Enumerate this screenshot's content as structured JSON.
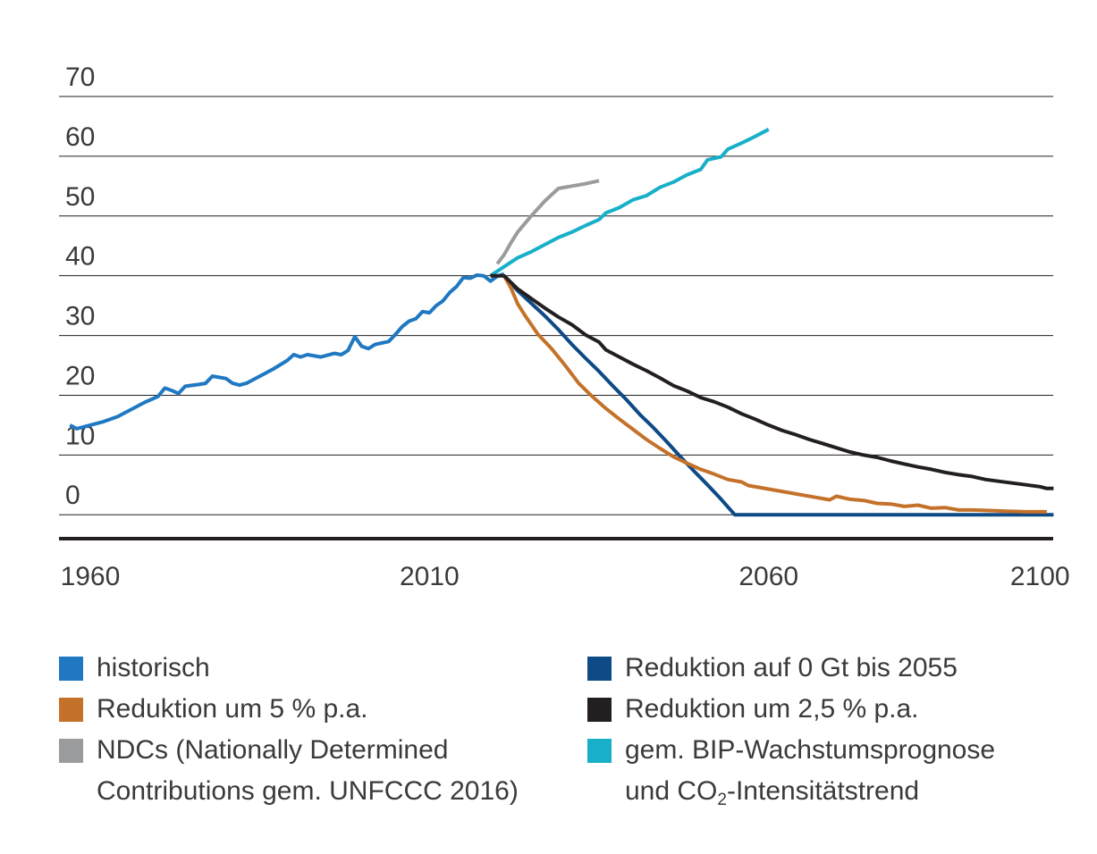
{
  "chart_data": {
    "type": "line",
    "title": "",
    "xlabel": "",
    "ylabel": "",
    "xlim": [
      1955,
      2103
    ],
    "ylim": [
      -4,
      70
    ],
    "x_ticks": [
      1960,
      2010,
      2060,
      2100
    ],
    "x_tick_labels": [
      "1960",
      "2010",
      "2060",
      "2100"
    ],
    "y_ticks": [
      70,
      60,
      50,
      40,
      30,
      20,
      10,
      0
    ],
    "y_tick_labels": [
      "70",
      "60",
      "50",
      "40",
      "30",
      "20",
      "10",
      "0"
    ],
    "grid": "horizontal",
    "legend_position": "bottom",
    "series": [
      {
        "name": "historisch",
        "color": "#1f78c1",
        "points": [
          [
            1957,
            15.0
          ],
          [
            1958,
            14.4
          ],
          [
            1960,
            15.0
          ],
          [
            1962,
            15.6
          ],
          [
            1964,
            16.4
          ],
          [
            1965,
            17.0
          ],
          [
            1967,
            18.2
          ],
          [
            1968,
            18.8
          ],
          [
            1970,
            19.8
          ],
          [
            1971,
            21.2
          ],
          [
            1972,
            20.8
          ],
          [
            1973,
            20.3
          ],
          [
            1974,
            21.5
          ],
          [
            1976,
            21.8
          ],
          [
            1977,
            22.0
          ],
          [
            1978,
            23.2
          ],
          [
            1980,
            22.8
          ],
          [
            1981,
            22.0
          ],
          [
            1982,
            21.7
          ],
          [
            1983,
            22.0
          ],
          [
            1985,
            23.2
          ],
          [
            1987,
            24.4
          ],
          [
            1989,
            25.8
          ],
          [
            1990,
            26.8
          ],
          [
            1991,
            26.4
          ],
          [
            1992,
            26.8
          ],
          [
            1994,
            26.4
          ],
          [
            1996,
            27.0
          ],
          [
            1997,
            26.8
          ],
          [
            1998,
            27.5
          ],
          [
            1999,
            29.8
          ],
          [
            2000,
            28.2
          ],
          [
            2001,
            27.8
          ],
          [
            2002,
            28.5
          ],
          [
            2004,
            29.0
          ],
          [
            2005,
            30.2
          ],
          [
            2006,
            31.5
          ],
          [
            2007,
            32.4
          ],
          [
            2008,
            32.8
          ],
          [
            2009,
            34.0
          ],
          [
            2010,
            33.8
          ],
          [
            2011,
            35.0
          ],
          [
            2012,
            35.8
          ],
          [
            2013,
            37.2
          ],
          [
            2014,
            38.2
          ],
          [
            2015,
            39.7
          ],
          [
            2016,
            39.6
          ],
          [
            2017,
            40.1
          ],
          [
            2018,
            40.0
          ],
          [
            2019,
            39.1
          ],
          [
            2020,
            39.9
          ],
          [
            2021,
            40.3
          ]
        ]
      },
      {
        "name": "NDCs (Nationally Determined Contributions gem. UNFCCC 2016)",
        "color": "#9a9b9d",
        "points": [
          [
            2020,
            42.0
          ],
          [
            2021,
            43.5
          ],
          [
            2022,
            45.5
          ],
          [
            2023,
            47.3
          ],
          [
            2025,
            50.0
          ],
          [
            2027,
            52.5
          ],
          [
            2029,
            54.6
          ],
          [
            2031,
            55.0
          ],
          [
            2033,
            55.4
          ],
          [
            2035,
            55.9
          ]
        ]
      },
      {
        "name": "gem. BIP-Wachstumsprognose und CO2-Intensitätstrend",
        "color": "#17b0c8",
        "points": [
          [
            2019,
            40.0
          ],
          [
            2021,
            41.5
          ],
          [
            2023,
            43.0
          ],
          [
            2025,
            44.0
          ],
          [
            2027,
            45.2
          ],
          [
            2029,
            46.4
          ],
          [
            2031,
            47.3
          ],
          [
            2033,
            48.4
          ],
          [
            2035,
            49.4
          ],
          [
            2036,
            50.5
          ],
          [
            2038,
            51.4
          ],
          [
            2040,
            52.7
          ],
          [
            2042,
            53.4
          ],
          [
            2044,
            54.8
          ],
          [
            2046,
            55.7
          ],
          [
            2048,
            56.9
          ],
          [
            2050,
            57.8
          ],
          [
            2051,
            59.4
          ],
          [
            2053,
            59.9
          ],
          [
            2054,
            61.2
          ],
          [
            2056,
            62.2
          ],
          [
            2058,
            63.3
          ],
          [
            2060,
            64.5
          ]
        ]
      },
      {
        "name": "Reduktion auf 0 Gt bis 2055",
        "color": "#0d4a86",
        "points": [
          [
            2021,
            40.0
          ],
          [
            2023,
            37.5
          ],
          [
            2025,
            35.4
          ],
          [
            2027,
            33.3
          ],
          [
            2029,
            31.0
          ],
          [
            2031,
            28.5
          ],
          [
            2033,
            26.2
          ],
          [
            2035,
            24.0
          ],
          [
            2037,
            21.6
          ],
          [
            2039,
            19.3
          ],
          [
            2041,
            16.8
          ],
          [
            2043,
            14.6
          ],
          [
            2045,
            12.2
          ],
          [
            2047,
            9.7
          ],
          [
            2049,
            7.3
          ],
          [
            2051,
            5.0
          ],
          [
            2053,
            2.6
          ],
          [
            2055,
            0.0
          ],
          [
            2102,
            0.0
          ]
        ]
      },
      {
        "name": "Reduktion um 5 % p.a.",
        "color": "#c4722a",
        "points": [
          [
            2021,
            40.0
          ],
          [
            2022,
            38.0
          ],
          [
            2023,
            35.3
          ],
          [
            2024,
            33.5
          ],
          [
            2026,
            30.2
          ],
          [
            2028,
            27.8
          ],
          [
            2030,
            25.0
          ],
          [
            2032,
            22.0
          ],
          [
            2034,
            19.8
          ],
          [
            2036,
            17.8
          ],
          [
            2038,
            16.0
          ],
          [
            2040,
            14.3
          ],
          [
            2042,
            12.6
          ],
          [
            2044,
            11.1
          ],
          [
            2046,
            9.7
          ],
          [
            2048,
            8.6
          ],
          [
            2050,
            7.6
          ],
          [
            2052,
            6.8
          ],
          [
            2054,
            5.9
          ],
          [
            2056,
            5.5
          ],
          [
            2057,
            4.9
          ],
          [
            2060,
            4.3
          ],
          [
            2065,
            3.3
          ],
          [
            2069,
            2.5
          ],
          [
            2070,
            3.1
          ],
          [
            2072,
            2.6
          ],
          [
            2074,
            2.4
          ],
          [
            2076,
            1.9
          ],
          [
            2078,
            1.8
          ],
          [
            2080,
            1.4
          ],
          [
            2082,
            1.6
          ],
          [
            2084,
            1.1
          ],
          [
            2086,
            1.2
          ],
          [
            2088,
            0.8
          ],
          [
            2090,
            0.8
          ],
          [
            2093,
            0.7
          ],
          [
            2095,
            0.6
          ],
          [
            2098,
            0.5
          ],
          [
            2101,
            0.5
          ]
        ]
      },
      {
        "name": "Reduktion um 2,5 % p.a.",
        "color": "#231f20",
        "points": [
          [
            2019,
            40.0
          ],
          [
            2021,
            40.0
          ],
          [
            2023,
            37.8
          ],
          [
            2025,
            36.2
          ],
          [
            2027,
            34.6
          ],
          [
            2029,
            33.1
          ],
          [
            2031,
            31.8
          ],
          [
            2033,
            30.1
          ],
          [
            2035,
            28.9
          ],
          [
            2036,
            27.6
          ],
          [
            2038,
            26.4
          ],
          [
            2040,
            25.2
          ],
          [
            2042,
            24.1
          ],
          [
            2044,
            22.9
          ],
          [
            2046,
            21.6
          ],
          [
            2048,
            20.7
          ],
          [
            2050,
            19.6
          ],
          [
            2052,
            18.9
          ],
          [
            2054,
            18.0
          ],
          [
            2056,
            16.9
          ],
          [
            2058,
            16.0
          ],
          [
            2060,
            15.0
          ],
          [
            2062,
            14.1
          ],
          [
            2064,
            13.4
          ],
          [
            2066,
            12.6
          ],
          [
            2068,
            11.9
          ],
          [
            2070,
            11.2
          ],
          [
            2072,
            10.5
          ],
          [
            2074,
            10.0
          ],
          [
            2076,
            9.6
          ],
          [
            2078,
            9.0
          ],
          [
            2080,
            8.5
          ],
          [
            2082,
            8.0
          ],
          [
            2084,
            7.6
          ],
          [
            2086,
            7.1
          ],
          [
            2088,
            6.7
          ],
          [
            2090,
            6.4
          ],
          [
            2092,
            5.9
          ],
          [
            2094,
            5.6
          ],
          [
            2096,
            5.3
          ],
          [
            2098,
            5.0
          ],
          [
            2100,
            4.7
          ],
          [
            2101,
            4.4
          ],
          [
            2102,
            4.4
          ]
        ]
      }
    ]
  },
  "legend": {
    "col1": [
      {
        "label": "historisch",
        "color": "#1f78c1"
      },
      {
        "label": "Reduktion um 5 % p.a.",
        "color": "#c4722a"
      },
      {
        "label": "NDCs (Nationally Determined",
        "label2": "Contributions gem. UNFCCC 2016)",
        "color": "#9a9b9d"
      }
    ],
    "col2": [
      {
        "label": "Reduktion auf 0 Gt bis 2055",
        "color": "#0d4a86"
      },
      {
        "label": "Reduktion um 2,5 % p.a.",
        "color": "#231f20"
      },
      {
        "label": "gem. BIP-Wachstumsprognose",
        "label2_pre": "und CO",
        "label2_sub": "2",
        "label2_post": "-Intensitätstrend",
        "color": "#17b0c8"
      }
    ]
  }
}
